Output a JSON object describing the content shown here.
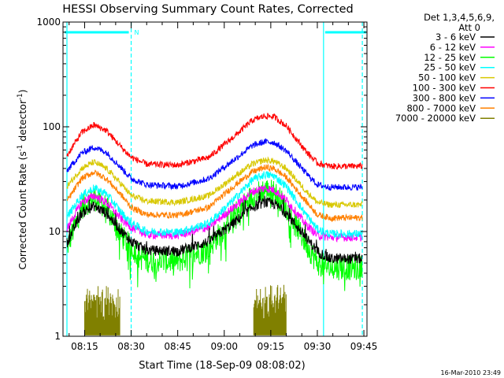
{
  "chart_data": {
    "type": "line",
    "title": "HESSI Observing Summary Count Rates, Corrected",
    "xlabel": "Start Time (18-Sep-09 08:08:02)",
    "ylabel": "Corrected Count Rate (s⁻¹ detector⁻¹)",
    "ylabel_main": "Corrected Count Rate (s",
    "ylabel_sup1": "-1",
    "ylabel_mid": " detector",
    "ylabel_sup2": "-1",
    "ylabel_end": ")",
    "yscale": "log",
    "ylim": [
      1,
      1000
    ],
    "xlim_minutes": [
      488.03,
      586
    ],
    "x_ticks": [
      {
        "value": 495,
        "label": "08:15"
      },
      {
        "value": 510,
        "label": "08:30"
      },
      {
        "value": 525,
        "label": "08:45"
      },
      {
        "value": 540,
        "label": "09:00"
      },
      {
        "value": 555,
        "label": "09:15"
      },
      {
        "value": 570,
        "label": "09:30"
      },
      {
        "value": 585,
        "label": "09:45"
      }
    ],
    "y_ticks": [
      {
        "value": 1,
        "label": "1"
      },
      {
        "value": 10,
        "label": "10"
      },
      {
        "value": 100,
        "label": "100"
      },
      {
        "value": 1000,
        "label": "1000"
      }
    ],
    "legend": {
      "placement": "right",
      "header": [
        "Det 1,3,4,5,6,9,",
        "Att 0"
      ]
    },
    "series": [
      {
        "name": "3 - 6 keV",
        "color": "#000000",
        "noise": 0.05,
        "base": [
          [
            488,
            6.5
          ],
          [
            494,
            15
          ],
          [
            498,
            17.5
          ],
          [
            502,
            15
          ],
          [
            507,
            10
          ],
          [
            510,
            8
          ],
          [
            515,
            6.6
          ],
          [
            525,
            6.5
          ],
          [
            535,
            8
          ],
          [
            543,
            12
          ],
          [
            549,
            17
          ],
          [
            553,
            19
          ],
          [
            556,
            18.5
          ],
          [
            560,
            15
          ],
          [
            566,
            9
          ],
          [
            570,
            6.5
          ],
          [
            574,
            5.5
          ],
          [
            586,
            5.5
          ]
        ]
      },
      {
        "name": "6 - 12 keV",
        "color": "#ff00ff",
        "noise": 0.04,
        "base": [
          [
            488,
            9
          ],
          [
            494,
            19
          ],
          [
            498,
            22
          ],
          [
            502,
            19
          ],
          [
            507,
            13
          ],
          [
            510,
            11
          ],
          [
            515,
            9.3
          ],
          [
            525,
            9.2
          ],
          [
            535,
            11
          ],
          [
            543,
            17
          ],
          [
            549,
            24
          ],
          [
            553,
            26
          ],
          [
            556,
            25
          ],
          [
            560,
            20
          ],
          [
            566,
            12
          ],
          [
            570,
            9.2
          ],
          [
            574,
            8.8
          ],
          [
            586,
            8.8
          ]
        ]
      },
      {
        "name": "12 - 25 keV",
        "color": "#00ff00",
        "noise": 0.12,
        "base": [
          [
            488,
            5.5
          ],
          [
            494,
            17
          ],
          [
            498,
            21
          ],
          [
            502,
            17
          ],
          [
            507,
            9
          ],
          [
            510,
            7
          ],
          [
            515,
            5.3
          ],
          [
            525,
            5.2
          ],
          [
            535,
            7
          ],
          [
            543,
            14
          ],
          [
            549,
            22
          ],
          [
            553,
            25
          ],
          [
            556,
            24
          ],
          [
            560,
            17
          ],
          [
            566,
            8
          ],
          [
            570,
            5
          ],
          [
            574,
            4.5
          ],
          [
            586,
            4.5
          ]
        ]
      },
      {
        "name": "25 - 50 keV",
        "color": "#00ffff",
        "noise": 0.04,
        "base": [
          [
            488,
            12
          ],
          [
            494,
            22
          ],
          [
            498,
            26
          ],
          [
            502,
            23
          ],
          [
            507,
            15
          ],
          [
            510,
            12
          ],
          [
            515,
            10
          ],
          [
            525,
            9.8
          ],
          [
            535,
            12
          ],
          [
            543,
            20
          ],
          [
            549,
            31
          ],
          [
            553,
            35
          ],
          [
            556,
            34
          ],
          [
            560,
            27
          ],
          [
            566,
            15
          ],
          [
            570,
            10.5
          ],
          [
            574,
            9.5
          ],
          [
            586,
            9.5
          ]
        ]
      },
      {
        "name": "50 - 100 keV",
        "color": "#d8c800",
        "noise": 0.03,
        "base": [
          [
            488,
            24
          ],
          [
            494,
            40
          ],
          [
            498,
            46
          ],
          [
            502,
            40
          ],
          [
            507,
            28
          ],
          [
            510,
            22
          ],
          [
            515,
            19.5
          ],
          [
            525,
            19
          ],
          [
            535,
            22
          ],
          [
            543,
            33
          ],
          [
            549,
            44
          ],
          [
            553,
            48
          ],
          [
            556,
            47
          ],
          [
            560,
            40
          ],
          [
            566,
            25
          ],
          [
            570,
            19
          ],
          [
            574,
            18
          ],
          [
            586,
            18
          ]
        ]
      },
      {
        "name": "100 - 300 keV",
        "color": "#ff0000",
        "noise": 0.03,
        "base": [
          [
            488,
            46
          ],
          [
            494,
            88
          ],
          [
            498,
            104
          ],
          [
            502,
            92
          ],
          [
            507,
            63
          ],
          [
            510,
            51
          ],
          [
            515,
            44
          ],
          [
            525,
            43
          ],
          [
            535,
            51
          ],
          [
            543,
            80
          ],
          [
            549,
            115
          ],
          [
            553,
            127
          ],
          [
            556,
            125
          ],
          [
            560,
            102
          ],
          [
            566,
            60
          ],
          [
            570,
            45
          ],
          [
            574,
            42
          ],
          [
            586,
            42
          ]
        ]
      },
      {
        "name": "300 - 800 keV",
        "color": "#0000ff",
        "noise": 0.03,
        "base": [
          [
            488,
            34
          ],
          [
            494,
            56
          ],
          [
            498,
            64
          ],
          [
            502,
            57
          ],
          [
            507,
            40
          ],
          [
            510,
            32
          ],
          [
            515,
            28
          ],
          [
            525,
            27
          ],
          [
            535,
            32
          ],
          [
            543,
            48
          ],
          [
            549,
            66
          ],
          [
            553,
            72
          ],
          [
            556,
            71
          ],
          [
            560,
            59
          ],
          [
            566,
            37
          ],
          [
            570,
            28
          ],
          [
            574,
            26.5
          ],
          [
            586,
            26.5
          ]
        ]
      },
      {
        "name": "800 - 7000 keV",
        "color": "#ff8000",
        "noise": 0.03,
        "base": [
          [
            488,
            17
          ],
          [
            494,
            32
          ],
          [
            498,
            37
          ],
          [
            502,
            32
          ],
          [
            507,
            22
          ],
          [
            510,
            17
          ],
          [
            515,
            14.5
          ],
          [
            525,
            14.3
          ],
          [
            535,
            17
          ],
          [
            543,
            27
          ],
          [
            549,
            37
          ],
          [
            553,
            41
          ],
          [
            556,
            40
          ],
          [
            560,
            33
          ],
          [
            566,
            20
          ],
          [
            570,
            14.5
          ],
          [
            574,
            13.5
          ],
          [
            586,
            13.5
          ]
        ]
      },
      {
        "name": "7000 - 20000 keV",
        "color": "#808000",
        "noise": 0.0,
        "base": []
      }
    ],
    "gap_intervals": [
      [
        488.03,
        489.3
      ],
      [
        572.0,
        586.0
      ]
    ],
    "flag_bars": [
      {
        "start": 488.03,
        "end": 510.0,
        "label": "N"
      },
      {
        "start": 572.0,
        "end": 586.0,
        "label": ""
      }
    ],
    "dashed_markers": [
      510.0,
      584.5
    ],
    "solid_markers": [
      489.3,
      572.0
    ],
    "high_band_bursts": [
      [
        495.0,
        506.5
      ],
      [
        549.5,
        560.0
      ]
    ]
  },
  "footer_timestamp": "16-Mar-2010 23:49"
}
